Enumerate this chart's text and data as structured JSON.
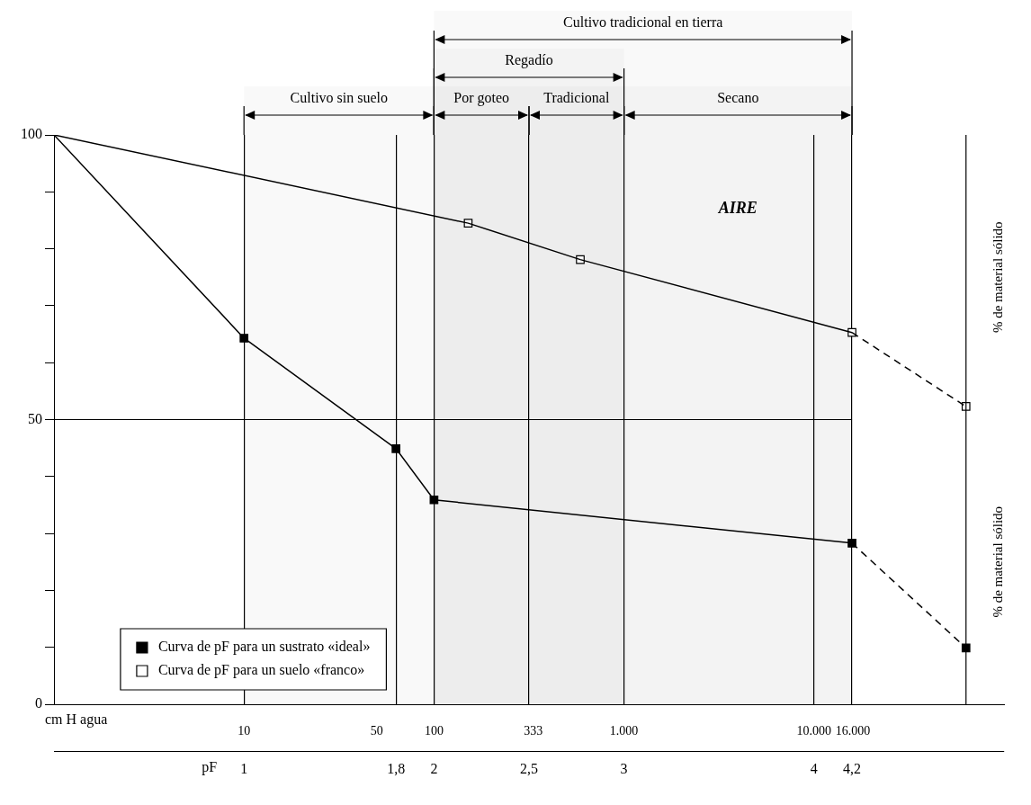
{
  "chart_data": {
    "type": "line",
    "xlabel": "pF",
    "x2label": "cm H agua",
    "xlim": [
      0,
      5
    ],
    "xticks": [
      1,
      {
        "value": 1.8,
        "label": "1,8"
      },
      2,
      {
        "value": 2.5,
        "label": "2,5"
      },
      3,
      4,
      {
        "value": 4.2,
        "label": "4,2"
      }
    ],
    "x2lim": [
      1,
      100000
    ],
    "x2ticks": [
      10,
      50,
      100,
      333,
      {
        "value": 1000,
        "label": "1.000"
      },
      {
        "value": 10000,
        "label": "10.000"
      },
      {
        "value": 16000,
        "label": "16.000"
      }
    ],
    "log": "x2",
    "ylim": [
      0,
      100
    ],
    "yticks": [
      0,
      {
        "value": 10,
        "label": null
      },
      {
        "value": 20,
        "label": null
      },
      {
        "value": 30,
        "label": null
      },
      {
        "value": 40,
        "label": null
      },
      50,
      {
        "value": 60,
        "label": null
      },
      {
        "value": 70,
        "label": null
      },
      {
        "value": 80,
        "label": null
      },
      {
        "value": 90,
        "label": null
      },
      100
    ],
    "grid": "x",
    "legend": "bottom left",
    "series": [
      {
        "color": "#000000",
        "marker": "none",
        "line_style": "solid",
        "x": [
          0,
          1,
          1.8,
          2,
          4.2
        ],
        "values": [
          100,
          64.3,
          44.9,
          35.9,
          28.3
        ]
      },
      {
        "color": "#000000",
        "marker": "none",
        "line_style": "dashed",
        "x": [
          4.2,
          4.8
        ],
        "values": [
          28.3,
          9.9
        ]
      },
      {
        "type": "scatter",
        "name": "Curva de pF para un sustrato «ideal»",
        "color": "#000000",
        "marker": "square",
        "x": [
          1,
          1.8,
          2,
          4.2,
          4.8
        ],
        "values": [
          64.3,
          44.9,
          35.9,
          28.3,
          9.9
        ]
      },
      {
        "color": "#000000",
        "marker": "none",
        "line_style": "solid",
        "x": [
          0,
          2.18,
          2.77,
          4.2
        ],
        "values": [
          100,
          84.5,
          78.1,
          65.3
        ]
      },
      {
        "color": "#000000",
        "marker": "none",
        "line_style": "dashed",
        "x": [
          4.2,
          4.8
        ],
        "values": [
          65.3,
          52.3
        ]
      },
      {
        "type": "scatter",
        "name": "Curva de pF para un suelo «franco»",
        "color": "#ffffff",
        "marker": "square",
        "x": [
          2.18,
          2.77,
          4.2,
          4.8
        ],
        "values": [
          84.5,
          78.1,
          65.3,
          52.3
        ]
      }
    ],
    "ref_lines": [
      {
        "axis": "y",
        "value": 50
      },
      {
        "axis": "x",
        "value": 4.8
      }
    ],
    "bands": [
      {
        "axis": "x",
        "from": 1,
        "to": 2,
        "label": "Cultivo sin suelo"
      },
      {
        "axis": "x",
        "from": 2,
        "to": 2.5,
        "label": "Por goteo"
      },
      {
        "axis": "x",
        "from": 2.5,
        "to": 3,
        "label": "Tradicional"
      },
      {
        "axis": "x",
        "from": 3,
        "to": 4.2,
        "label": "Secano"
      },
      {
        "axis": "x",
        "from": 2,
        "to": 3,
        "label": "Regadío"
      },
      {
        "axis": "x",
        "from": 2,
        "to": 4.2,
        "label": "Cultivo tradicional en tierra"
      }
    ],
    "annotations": [
      "AIRE",
      "% de material sólido",
      "% de material sólido"
    ]
  }
}
